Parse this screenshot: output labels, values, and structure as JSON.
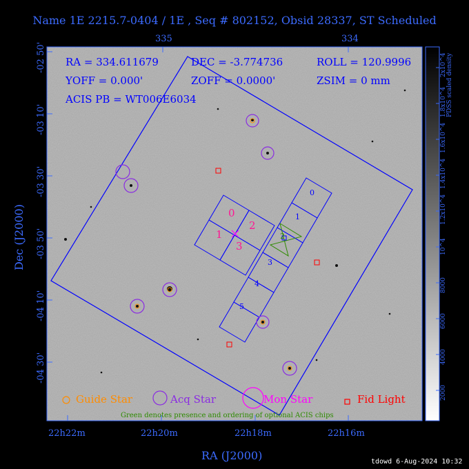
{
  "title": "Name 1E 2215.7-0404 / 1E , Seq # 802152, Obsid 28337, ST Scheduled",
  "top_ticks": [
    "335",
    "334"
  ],
  "bottom_ticks": [
    "22h22m",
    "22h20m",
    "22h18m",
    "22h16m"
  ],
  "left_ticks": [
    "-02 50'",
    "-03 10'",
    "-03 30'",
    "-03 50'",
    "-04 10'",
    "-04 30'"
  ],
  "xlabel": "RA (J2000)",
  "ylabel": "Dec (J2000)",
  "info": {
    "ra": "RA = 334.611679",
    "dec": "DEC = -3.774736",
    "roll": "ROLL = 120.9996",
    "yoff": "YOFF =    0.000'",
    "zoff": "ZOFF =   0.0000'",
    "zsim": "ZSIM = 0 mm",
    "acis_pb": "ACIS PB = WT006E6034"
  },
  "chips": {
    "i0": "0",
    "i1": "1",
    "i2": "2",
    "i3": "3",
    "s0": "0",
    "s1": "1",
    "s2": "2",
    "s3": "3",
    "s4": "4",
    "s5": "5"
  },
  "legend": {
    "guide": "Guide Star",
    "acq": "Acq Star",
    "mon": "Mon Star",
    "fid": "Fid Light"
  },
  "green_note": "Green denotes presence and ordering of optional ACIS chips",
  "colorbar_title": "PDSS scaled density",
  "colorbar_ticks": [
    "2x10^4",
    "1.8x10^4",
    "1.6x10^4",
    "1.4x10^4",
    "1.2x10^4",
    "10^4",
    "8000",
    "6000",
    "4000",
    "2000"
  ],
  "footer": "tdowd  6-Aug-2024 10:32",
  "colors": {
    "blue": "#0000ff",
    "axis": "#3c6bff",
    "guide": "#ff8c00",
    "acq": "#8a2be2",
    "mon": "#ff00ff",
    "fid": "#ff0000",
    "green": "#2e8b00"
  }
}
